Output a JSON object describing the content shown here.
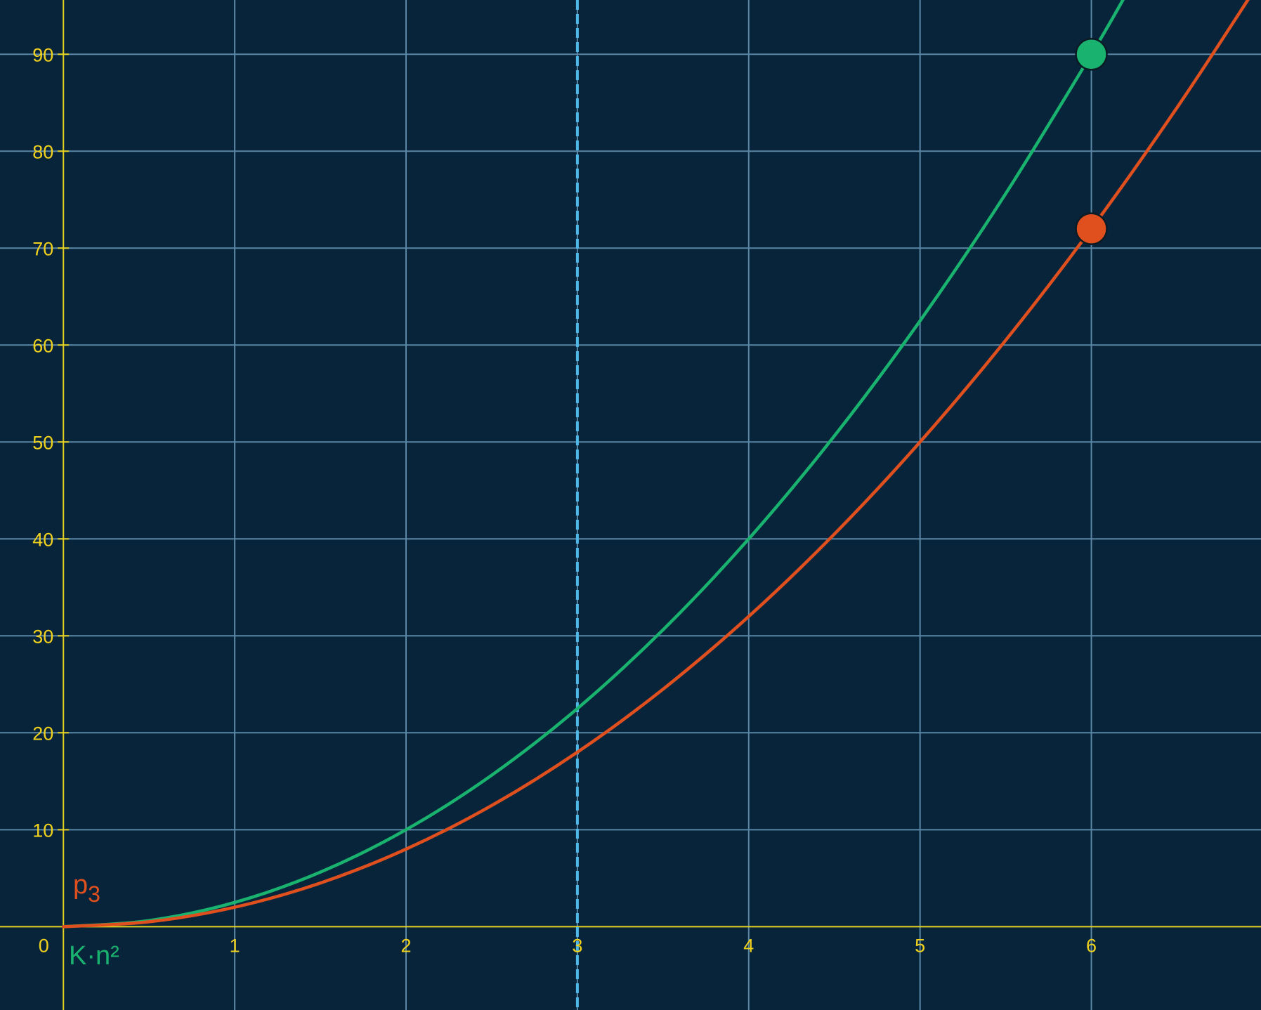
{
  "chart_data": {
    "type": "line",
    "title": "",
    "xlabel": "",
    "ylabel": "",
    "xlim": [
      -0.37,
      6.99
    ],
    "ylim": [
      -8.6,
      95.6
    ],
    "grid": true,
    "x_ticks": [
      {
        "value": 0,
        "label": "0"
      },
      {
        "value": 1,
        "label": "1"
      },
      {
        "value": 2,
        "label": "2"
      },
      {
        "value": 3,
        "label": "3"
      },
      {
        "value": 4,
        "label": "4"
      },
      {
        "value": 5,
        "label": "5"
      },
      {
        "value": 6,
        "label": "6"
      }
    ],
    "y_ticks": [
      {
        "value": 10,
        "label": "10"
      },
      {
        "value": 20,
        "label": "20"
      },
      {
        "value": 30,
        "label": "30"
      },
      {
        "value": 40,
        "label": "40"
      },
      {
        "value": 50,
        "label": "50"
      },
      {
        "value": 60,
        "label": "60"
      },
      {
        "value": 70,
        "label": "70"
      },
      {
        "value": 80,
        "label": "80"
      },
      {
        "value": 90,
        "label": "90"
      }
    ],
    "vertical_line": {
      "x": 3,
      "style": "dashed",
      "color": "#4fb8e8"
    },
    "series": [
      {
        "label_main": "K·n²",
        "label_sub": "",
        "color": "#19b26e",
        "x": [
          0,
          0.5,
          1,
          1.5,
          2,
          2.5,
          3,
          3.5,
          4,
          4.5,
          5,
          5.5,
          6,
          6.2
        ],
        "y": [
          0,
          0.625,
          2.5,
          5.625,
          10,
          15.625,
          22.5,
          30.625,
          40,
          50.625,
          62.5,
          75.625,
          90,
          96.1
        ],
        "marker": {
          "x": 6,
          "y": 90
        }
      },
      {
        "label_main": "p",
        "label_sub": "3",
        "color": "#e0501e",
        "x": [
          0,
          0.5,
          1,
          1.5,
          2,
          2.5,
          3,
          3.5,
          4,
          4.5,
          5,
          5.5,
          6,
          6.5,
          6.95
        ],
        "y": [
          0,
          0.5,
          2,
          4.5,
          8,
          12.5,
          18,
          24.5,
          32,
          40.5,
          50,
          60.5,
          72,
          84.5,
          96.6
        ],
        "marker": {
          "x": 6,
          "y": 72
        }
      }
    ]
  }
}
